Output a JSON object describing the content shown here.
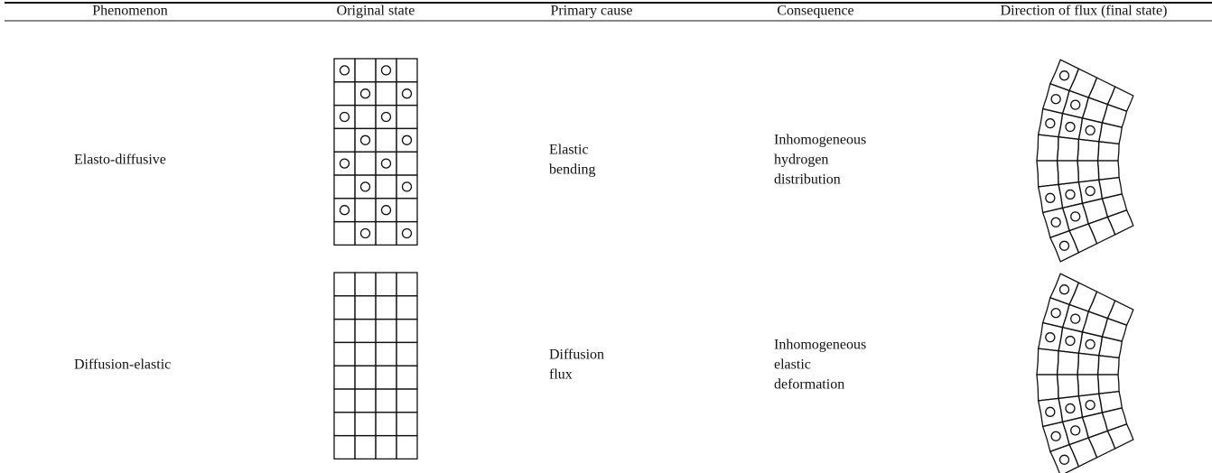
{
  "table": {
    "headers": [
      "Phenomenon",
      "Original state",
      "Primary cause",
      "Consequence",
      "Direction of flux (final state)"
    ],
    "rows": [
      {
        "phenomenon": "Elasto-diffusive",
        "cause": [
          "Elastic",
          "bending"
        ],
        "consequence": [
          "Inhomogeneous",
          "hydrogen",
          "distribution"
        ]
      },
      {
        "phenomenon": "Diffusion-elastic",
        "cause": [
          "Diffusion",
          "flux"
        ],
        "consequence": [
          "Inhomogeneous",
          "elastic",
          "deformation"
        ]
      }
    ]
  }
}
